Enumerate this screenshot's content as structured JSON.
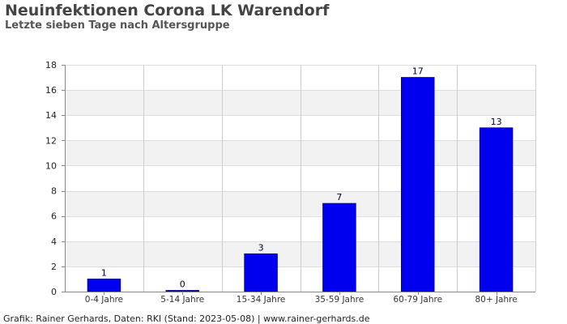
{
  "chart_data": {
    "type": "bar",
    "title": "Neuinfektionen Corona LK Warendorf",
    "subtitle": "Letzte sieben Tage nach Altersgruppe",
    "categories": [
      "0-4 Jahre",
      "5-14 Jahre",
      "15-34 Jahre",
      "35-59 Jahre",
      "60-79 Jahre",
      "80+ Jahre"
    ],
    "values": [
      1,
      0,
      3,
      7,
      17,
      13
    ],
    "xlabel": "",
    "ylabel": "",
    "ylim": [
      0,
      18
    ],
    "yticks": [
      0,
      2,
      4,
      6,
      8,
      10,
      12,
      14,
      16,
      18
    ],
    "grid": true,
    "bar_color": "#0000ee",
    "band_color": "#f2f2f2"
  },
  "footer": "Grafik: Rainer Gerhards, Daten: RKI (Stand: 2023-05-08) | www.rainer-gerhards.de"
}
